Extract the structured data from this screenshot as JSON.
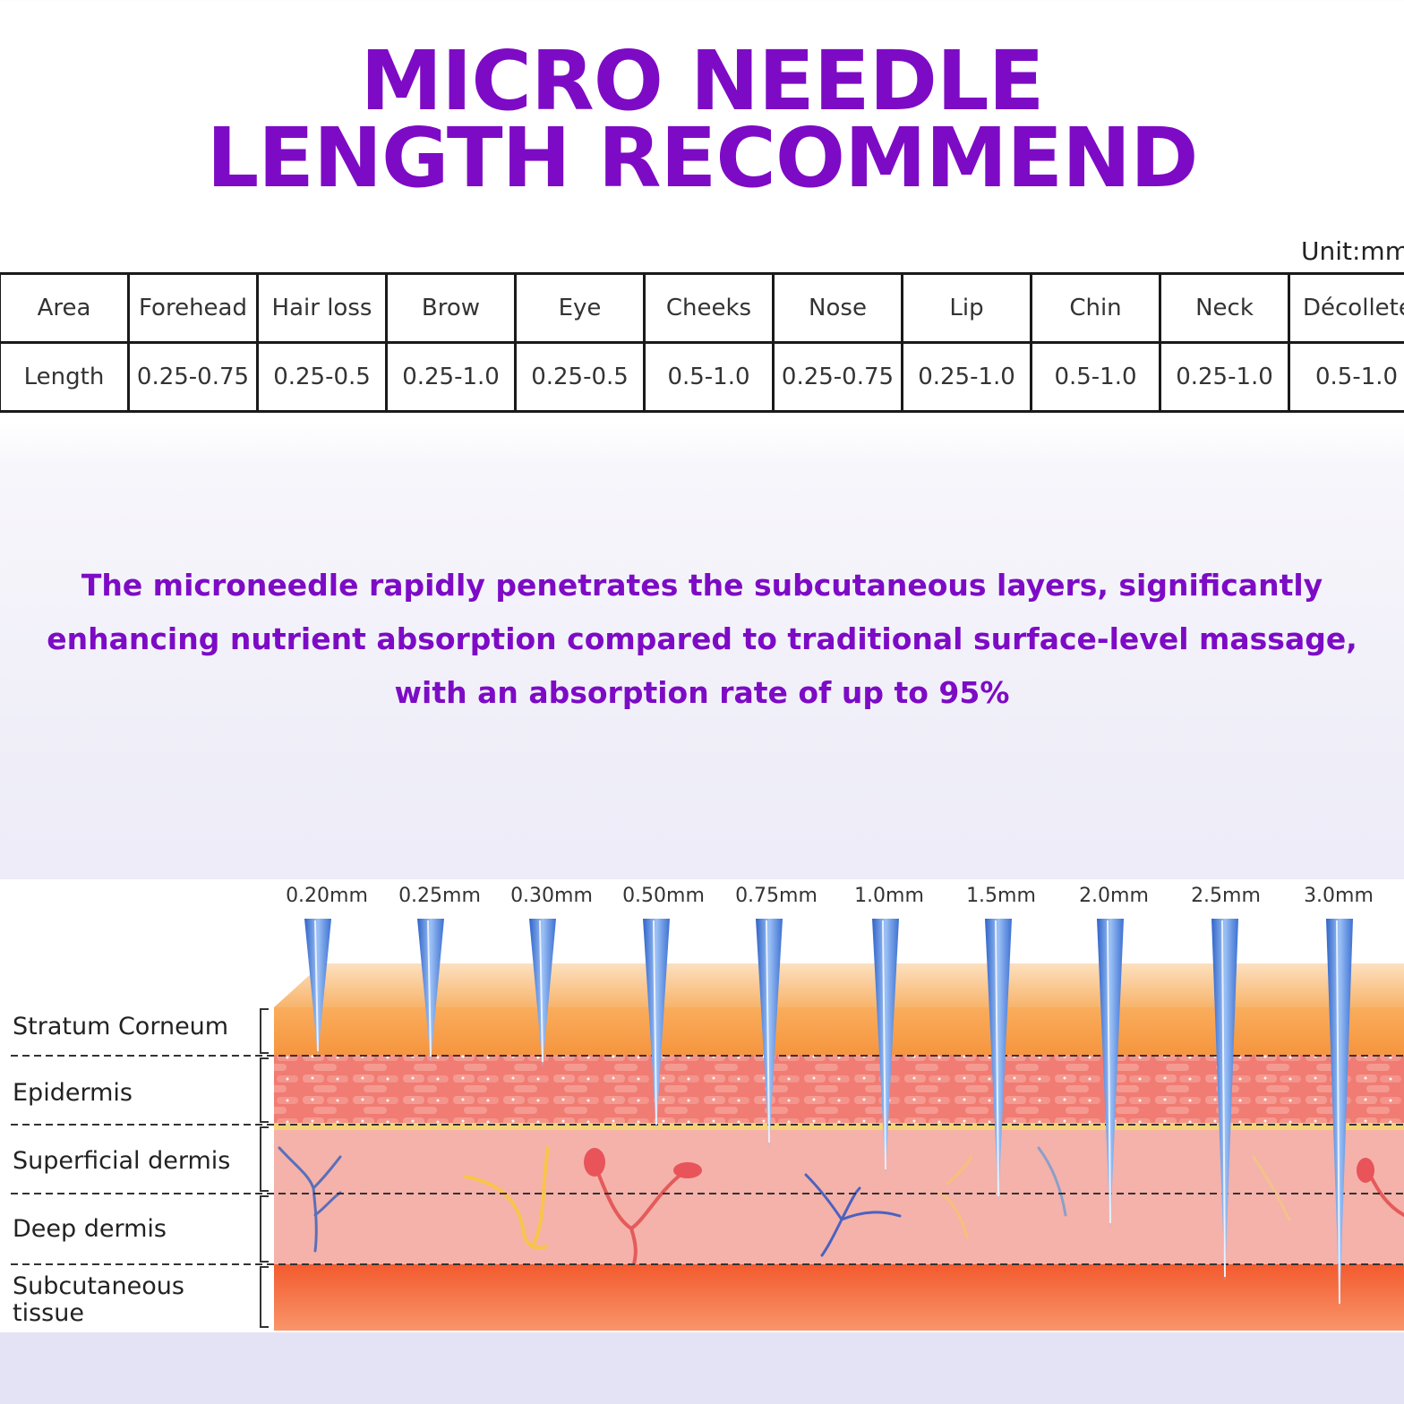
{
  "title": {
    "line1": "MICRO NEEDLE",
    "line2": "LENGTH RECOMMEND"
  },
  "unit_label": "Unit:mm",
  "table": {
    "row_headers": [
      "Area",
      "Length"
    ],
    "areas": [
      "Forehead",
      "Hair loss",
      "Brow",
      "Eye",
      "Cheeks",
      "Nose",
      "Lip",
      "Chin",
      "Neck",
      "Décolleté"
    ],
    "lengths": [
      "0.25-0.75",
      "0.25-0.5",
      "0.25-1.0",
      "0.25-0.5",
      "0.5-1.0",
      "0.25-0.75",
      "0.25-1.0",
      "0.5-1.0",
      "0.25-1.0",
      "0.5-1.0"
    ]
  },
  "description": "The microneedle rapidly penetrates the subcutaneous layers, significantly enhancing nutrient absorption compared to traditional surface-level massage, with an absorption rate of up to 95%",
  "skin_layers": [
    "Stratum Corneum",
    "Epidermis",
    "Superficial dermis",
    "Deep dermis",
    "Subcutaneous\ntissue"
  ],
  "needles": [
    {
      "label": "0.20mm",
      "length_mm": 0.2
    },
    {
      "label": "0.25mm",
      "length_mm": 0.25
    },
    {
      "label": "0.30mm",
      "length_mm": 0.3
    },
    {
      "label": "0.50mm",
      "length_mm": 0.5
    },
    {
      "label": "0.75mm",
      "length_mm": 0.75
    },
    {
      "label": "1.0mm",
      "length_mm": 1.0
    },
    {
      "label": "1.5mm",
      "length_mm": 1.5
    },
    {
      "label": "2.0mm",
      "length_mm": 2.0
    },
    {
      "label": "2.5mm",
      "length_mm": 2.5
    },
    {
      "label": "3.0mm",
      "length_mm": 3.0
    }
  ],
  "colors": {
    "title": "#7d0bc5",
    "stratum_corneum": "#f7a14e",
    "epidermis": "#f08078",
    "dermis": "#f3b1aa",
    "subcutaneous": "#f26a3e",
    "needle": "#5b8fe0"
  }
}
